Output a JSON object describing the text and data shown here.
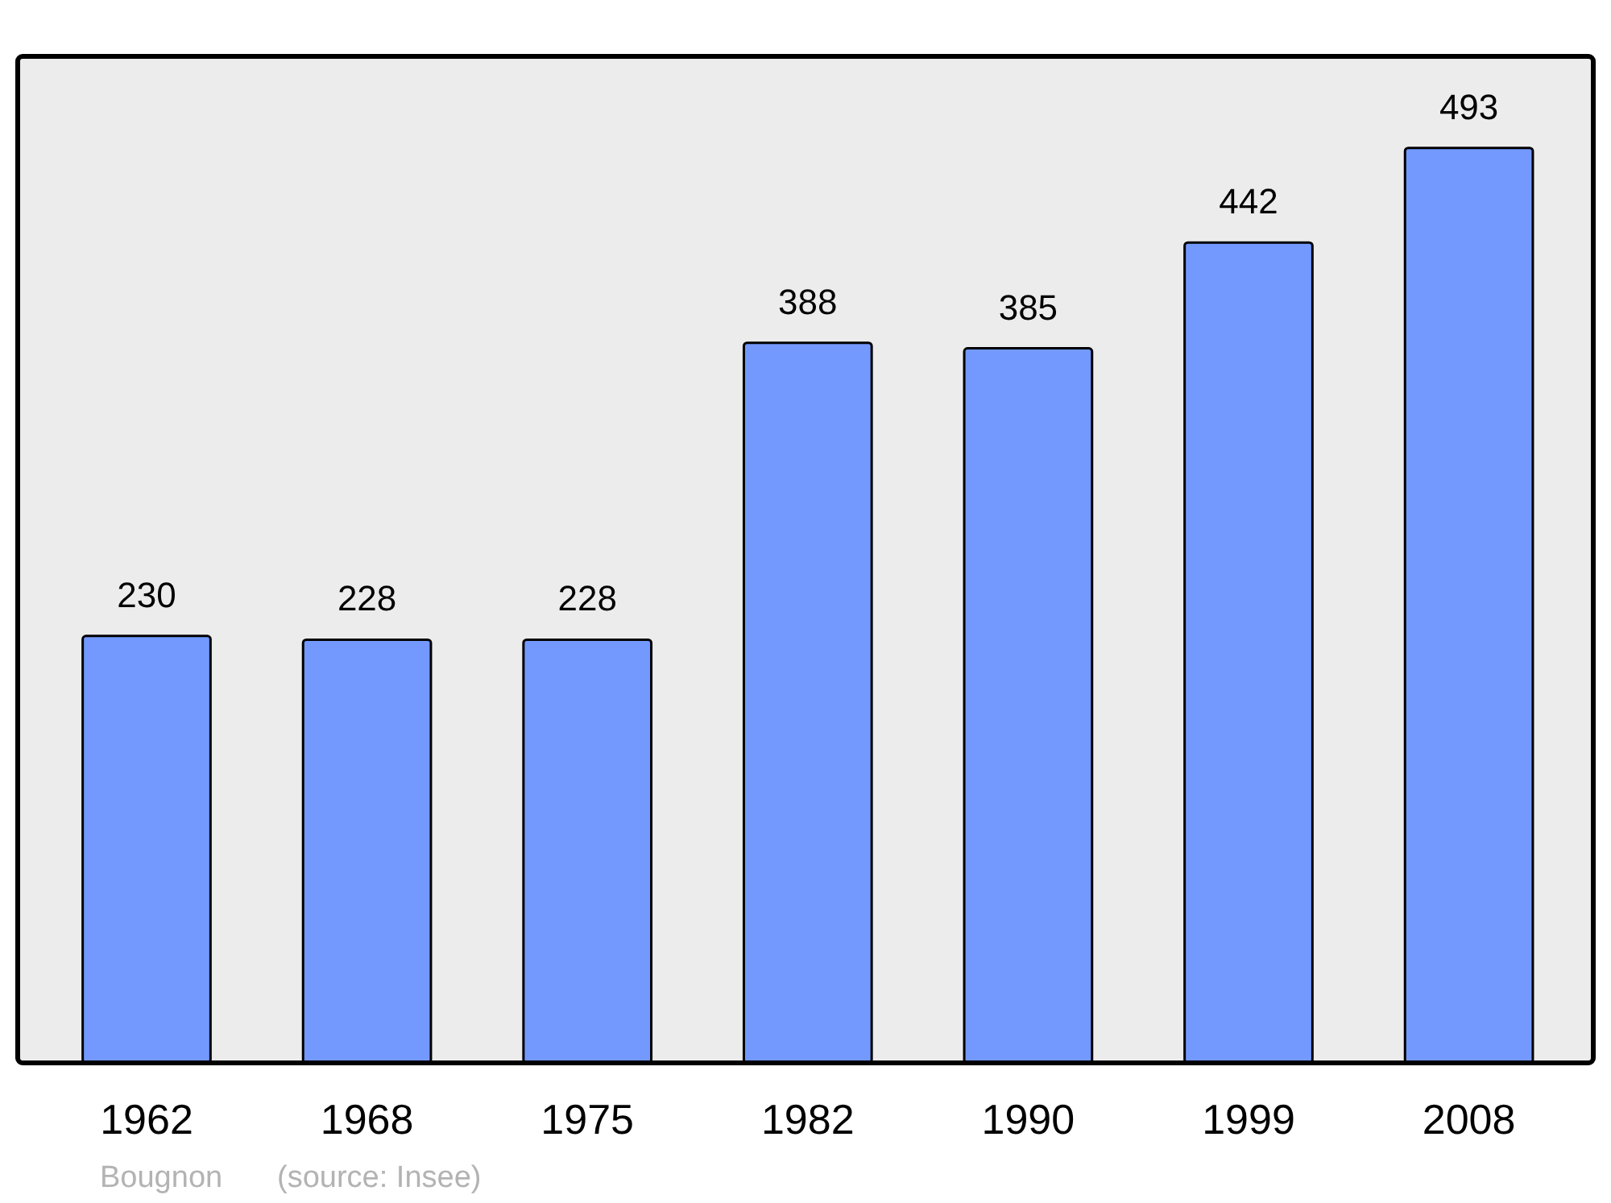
{
  "chart_data": {
    "type": "bar",
    "categories": [
      "1962",
      "1968",
      "1975",
      "1982",
      "1990",
      "1999",
      "2008"
    ],
    "values": [
      230,
      228,
      228,
      388,
      385,
      442,
      493
    ],
    "color": "#7399ff",
    "data_labels": true,
    "annotations": [
      "Bougnon",
      "(source: Insee)"
    ]
  }
}
